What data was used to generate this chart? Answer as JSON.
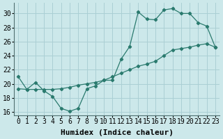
{
  "xlabel": "Humidex (Indice chaleur)",
  "xlim": [
    -0.5,
    23.5
  ],
  "ylim": [
    15.5,
    31.5
  ],
  "xticks": [
    0,
    1,
    2,
    3,
    4,
    5,
    6,
    7,
    8,
    9,
    10,
    11,
    12,
    13,
    14,
    15,
    16,
    17,
    18,
    19,
    20,
    21,
    22,
    23
  ],
  "yticks": [
    16,
    18,
    20,
    22,
    24,
    26,
    28,
    30
  ],
  "bg_color": "#cce8ea",
  "line_color": "#2a7a6e",
  "grid_color": "#aacfd4",
  "line1_x": [
    0,
    1,
    2,
    3,
    4,
    5,
    6,
    7,
    8,
    9,
    10,
    11,
    12,
    13,
    14,
    15,
    16,
    17,
    18,
    19,
    20,
    21,
    22,
    23
  ],
  "line1_y": [
    21.0,
    19.2,
    20.2,
    19.0,
    18.2,
    16.5,
    16.1,
    16.5,
    19.3,
    19.7,
    20.5,
    20.5,
    23.5,
    25.3,
    30.2,
    29.2,
    29.1,
    30.5,
    30.7,
    30.0,
    30.0,
    28.7,
    28.2,
    25.2
  ],
  "line2_x": [
    0,
    1,
    2,
    3,
    4,
    5,
    6,
    7,
    8,
    9,
    10,
    11,
    12,
    13,
    14,
    15,
    16,
    17,
    18,
    19,
    20,
    21,
    22,
    23
  ],
  "line2_y": [
    19.3,
    19.2,
    19.2,
    19.2,
    19.2,
    19.3,
    19.5,
    19.8,
    20.0,
    20.2,
    20.5,
    21.0,
    21.5,
    22.0,
    22.5,
    22.8,
    23.2,
    24.0,
    24.8,
    25.0,
    25.2,
    25.5,
    25.7,
    25.2
  ],
  "fontsize_label": 8,
  "fontsize_tick": 7
}
